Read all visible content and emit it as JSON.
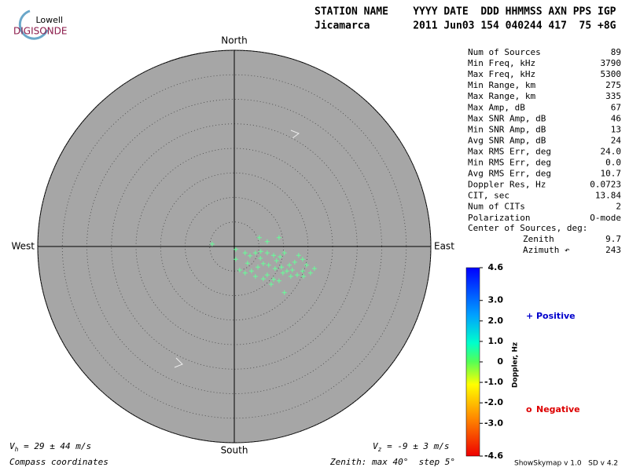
{
  "chart_data": {
    "type": "skymap",
    "logo": {
      "top": "Lowell",
      "bottom": "DIGISONDE"
    },
    "header": [
      "STATION NAME    YYYY DATE  DDD HHMMSS AXN PPS IGP",
      "Jicamarca       2011 Jun03 154 040244 417  75 +8G"
    ],
    "compass": {
      "north": "North",
      "south": "South",
      "east": "East",
      "west": "West"
    },
    "rlim": [
      0,
      40
    ],
    "rticks": [
      5,
      10,
      15,
      20,
      25,
      30,
      35,
      40
    ],
    "x": [
      -4.5,
      5.1,
      9.1,
      6.7,
      0.3,
      2.2,
      3.2,
      4.3,
      5.4,
      6.7,
      8.0,
      9.3,
      10.2,
      13.1,
      13.9,
      12.3,
      14.7,
      16.3,
      15.5,
      13.9,
      12.8,
      11.5,
      10.7,
      9.6,
      8.3,
      7.0,
      5.9,
      4.8,
      3.5,
      2.2,
      1.1,
      0.3,
      2.7,
      6.7,
      8.0,
      9.1,
      7.5,
      10.2,
      5.9,
      4.3,
      11.2,
      14.1,
      8.6,
      5.3,
      9.9,
      11.8
    ],
    "series": [
      {
        "color": "#66ff99",
        "values": [
          0.5,
          1.8,
          1.8,
          1.0,
          -0.6,
          -1.3,
          -1.9,
          -1.3,
          -1.0,
          -1.3,
          -1.8,
          -2.1,
          -1.3,
          -1.8,
          -2.6,
          -3.2,
          -3.8,
          -4.5,
          -5.4,
          -5.0,
          -5.8,
          -6.1,
          -5.0,
          -4.2,
          -4.5,
          -3.8,
          -3.5,
          -4.2,
          -5.0,
          -5.4,
          -4.8,
          -2.6,
          -3.4,
          -5.8,
          -6.7,
          -7.0,
          -7.7,
          -9.4,
          -6.6,
          -6.1,
          -3.8,
          -6.1,
          -2.9,
          -2.4,
          -5.4,
          -4.8
        ]
      }
    ],
    "stats": [
      {
        "label": "Num of Sources",
        "value": "89"
      },
      {
        "label": "Min Freq, kHz",
        "value": "3790"
      },
      {
        "label": "Max Freq, kHz",
        "value": "5300"
      },
      {
        "label": "Min Range, km",
        "value": "275"
      },
      {
        "label": "Max Range, km",
        "value": "335"
      },
      {
        "label": "Max Amp, dB",
        "value": "67"
      },
      {
        "label": "Max SNR Amp, dB",
        "value": "46"
      },
      {
        "label": "Min SNR Amp, dB",
        "value": "13"
      },
      {
        "label": "Avg SNR Amp, dB",
        "value": "24"
      },
      {
        "label": "Max RMS Err, deg",
        "value": "24.0"
      },
      {
        "label": "Min RMS Err, deg",
        "value": "0.0"
      },
      {
        "label": "Avg RMS Err, deg",
        "value": "10.7"
      },
      {
        "label": "Doppler Res, Hz",
        "value": "0.0723"
      },
      {
        "label": "CIT, sec",
        "value": "13.84"
      },
      {
        "label": "Num of CITs",
        "value": "2"
      },
      {
        "label": "Polarization",
        "value": "O-mode"
      }
    ],
    "center_heading": "Center of Sources, deg:",
    "center": [
      {
        "label": "Zenith",
        "value": "9.7"
      },
      {
        "label": "Azimuth ↶",
        "value": "243"
      }
    ],
    "colorbar": {
      "label": "Doppler, Hz",
      "lim": [
        -4.6,
        4.6
      ],
      "ticks": [
        4.6,
        {
          "value": 3,
          "label": "3.0"
        },
        {
          "value": 2,
          "label": "2.0"
        },
        {
          "value": 1,
          "label": "1.0"
        },
        0,
        {
          "value": -1,
          "label": "-1.0"
        },
        {
          "value": -2,
          "label": "-2.0"
        },
        {
          "value": -3,
          "label": "-3.0"
        },
        -4.6
      ]
    },
    "legend": [
      {
        "symbol": "+",
        "name": "Positive",
        "color": "#0000cc"
      },
      {
        "symbol": "o",
        "name": "Negative",
        "color": "#dd0000"
      }
    ],
    "vh": {
      "symbol": "V",
      "sub": "h",
      "text": " = 29 ± 44 m/s"
    },
    "vz": {
      "symbol": "V",
      "sub": "z",
      "text": " = -9 ± 3 m/s"
    },
    "coords_note": "Compass coordinates",
    "zenith_note": "Zenith: max 40°  step 5°",
    "version": "ShowSkymap v 1.0   SD v 4.2"
  }
}
